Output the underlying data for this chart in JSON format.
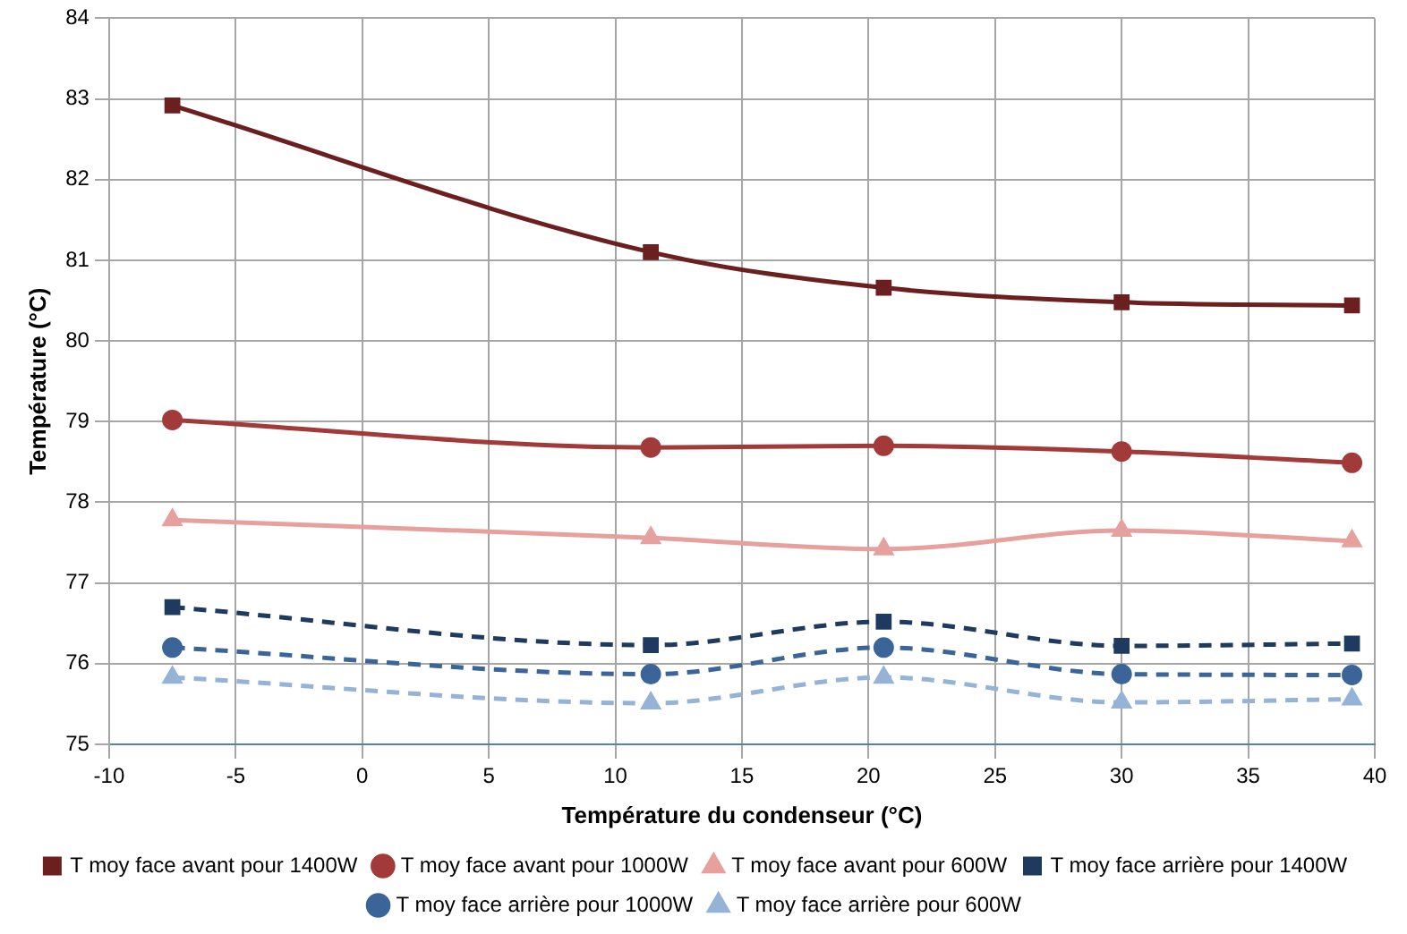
{
  "chart_data": {
    "type": "line",
    "xlabel": "Température du condenseur (°C)",
    "ylabel": "Température (°C)",
    "x": [
      -7.5,
      11.4,
      20.6,
      30,
      39.1
    ],
    "xlim": [
      -10,
      40
    ],
    "xticks": [
      -10,
      -5,
      0,
      5,
      10,
      15,
      20,
      25,
      30,
      35,
      40
    ],
    "ylim": [
      75,
      84
    ],
    "yticks": [
      75,
      76,
      77,
      78,
      79,
      80,
      81,
      82,
      83,
      84
    ],
    "grid": true,
    "legend": "bottom",
    "series": [
      {
        "name": "T moy face avant pour 1400W",
        "color": "#6b1f1f",
        "marker": "square",
        "line_style": "solid",
        "values": [
          82.92,
          81.1,
          80.66,
          80.48,
          80.44
        ]
      },
      {
        "name": "T moy face avant pour 1000W",
        "color": "#a33a3a",
        "marker": "circle",
        "line_style": "solid",
        "values": [
          79.02,
          78.68,
          78.7,
          78.63,
          78.49
        ]
      },
      {
        "name": "T moy face avant pour 600W",
        "color": "#e6a09e",
        "marker": "triangle",
        "line_style": "solid",
        "values": [
          77.78,
          77.56,
          77.42,
          77.65,
          77.52
        ]
      },
      {
        "name": "T moy face arrière pour 1400W",
        "color": "#1f3a5f",
        "marker": "square",
        "line_style": "dashed",
        "values": [
          76.7,
          76.23,
          76.52,
          76.22,
          76.25
        ]
      },
      {
        "name": "T moy face arrière pour 1000W",
        "color": "#3b6498",
        "marker": "circle",
        "line_style": "dashed",
        "values": [
          76.2,
          75.87,
          76.2,
          75.87,
          75.86
        ]
      },
      {
        "name": "T moy face arrière pour 600W",
        "color": "#95b3d7",
        "marker": "triangle",
        "line_style": "dashed",
        "values": [
          75.83,
          75.51,
          75.83,
          75.52,
          75.56
        ]
      }
    ]
  }
}
